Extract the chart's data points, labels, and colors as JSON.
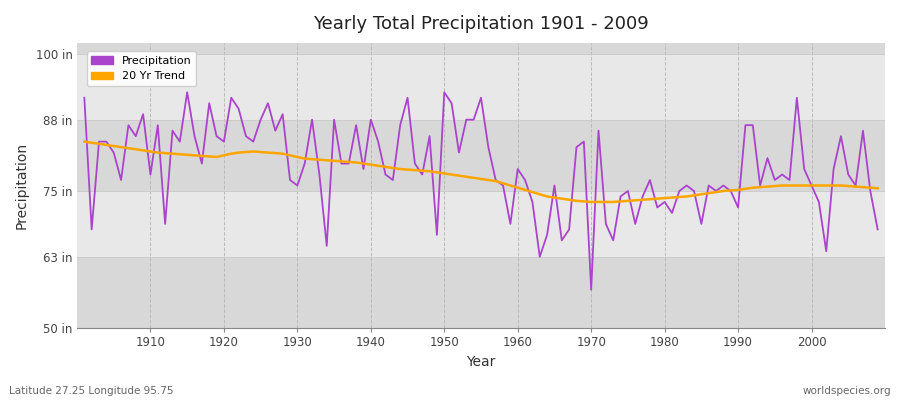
{
  "title": "Yearly Total Precipitation 1901 - 2009",
  "xlabel": "Year",
  "ylabel": "Precipitation",
  "subtitle_left": "Latitude 27.25 Longitude 95.75",
  "subtitle_right": "worldspecies.org",
  "ylim": [
    50,
    102
  ],
  "yticks": [
    50,
    63,
    75,
    88,
    100
  ],
  "ytick_labels": [
    "50 in",
    "63 in",
    "75 in",
    "88 in",
    "100 in"
  ],
  "xlim": [
    1900,
    2010
  ],
  "xticks": [
    1910,
    1920,
    1930,
    1940,
    1950,
    1960,
    1970,
    1980,
    1990,
    2000
  ],
  "precip_color": "#AA44CC",
  "trend_color": "#FFA500",
  "plot_bg": "#E8E8E8",
  "band_bg_dark": "#D8D8D8",
  "grid_color_v": "#BBBBBB",
  "grid_color_h": "#CCCCCC",
  "years": [
    1901,
    1902,
    1903,
    1904,
    1905,
    1906,
    1907,
    1908,
    1909,
    1910,
    1911,
    1912,
    1913,
    1914,
    1915,
    1916,
    1917,
    1918,
    1919,
    1920,
    1921,
    1922,
    1923,
    1924,
    1925,
    1926,
    1927,
    1928,
    1929,
    1930,
    1931,
    1932,
    1933,
    1934,
    1935,
    1936,
    1937,
    1938,
    1939,
    1940,
    1941,
    1942,
    1943,
    1944,
    1945,
    1946,
    1947,
    1948,
    1949,
    1950,
    1951,
    1952,
    1953,
    1954,
    1955,
    1956,
    1957,
    1958,
    1959,
    1960,
    1961,
    1962,
    1963,
    1964,
    1965,
    1966,
    1967,
    1968,
    1969,
    1970,
    1971,
    1972,
    1973,
    1974,
    1975,
    1976,
    1977,
    1978,
    1979,
    1980,
    1981,
    1982,
    1983,
    1984,
    1985,
    1986,
    1987,
    1988,
    1989,
    1990,
    1991,
    1992,
    1993,
    1994,
    1995,
    1996,
    1997,
    1998,
    1999,
    2000,
    2001,
    2002,
    2003,
    2004,
    2005,
    2006,
    2007,
    2008,
    2009
  ],
  "precip": [
    92,
    68,
    84,
    84,
    82,
    77,
    87,
    85,
    89,
    78,
    87,
    69,
    86,
    84,
    93,
    85,
    80,
    91,
    85,
    84,
    92,
    90,
    85,
    84,
    88,
    91,
    86,
    89,
    77,
    76,
    80,
    88,
    78,
    65,
    88,
    80,
    80,
    87,
    79,
    88,
    84,
    78,
    77,
    87,
    92,
    80,
    78,
    85,
    67,
    93,
    91,
    82,
    88,
    88,
    92,
    83,
    77,
    76,
    69,
    79,
    77,
    73,
    63,
    67,
    76,
    66,
    68,
    83,
    84,
    57,
    86,
    69,
    66,
    74,
    75,
    69,
    74,
    77,
    72,
    73,
    71,
    75,
    76,
    75,
    69,
    76,
    75,
    76,
    75,
    72,
    87,
    87,
    76,
    81,
    77,
    78,
    77,
    92,
    79,
    76,
    73,
    64,
    79,
    85,
    78,
    76,
    86,
    75,
    68
  ],
  "trend": [
    84.0,
    83.8,
    83.6,
    83.4,
    83.2,
    83.0,
    82.8,
    82.6,
    82.4,
    82.2,
    82.0,
    81.9,
    81.8,
    81.7,
    81.6,
    81.5,
    81.4,
    81.3,
    81.2,
    81.5,
    81.8,
    82.0,
    82.1,
    82.2,
    82.1,
    82.0,
    81.9,
    81.8,
    81.5,
    81.2,
    80.9,
    80.8,
    80.7,
    80.6,
    80.5,
    80.4,
    80.3,
    80.2,
    80.0,
    79.8,
    79.6,
    79.4,
    79.2,
    79.0,
    78.9,
    78.8,
    78.7,
    78.6,
    78.4,
    78.2,
    78.0,
    77.8,
    77.6,
    77.4,
    77.2,
    77.0,
    76.8,
    76.4,
    76.0,
    75.6,
    75.2,
    74.8,
    74.4,
    74.0,
    73.8,
    73.6,
    73.4,
    73.2,
    73.1,
    73.0,
    73.0,
    73.0,
    73.0,
    73.1,
    73.2,
    73.3,
    73.4,
    73.5,
    73.6,
    73.7,
    73.8,
    73.9,
    74.0,
    74.2,
    74.4,
    74.6,
    74.8,
    75.0,
    75.1,
    75.2,
    75.4,
    75.6,
    75.7,
    75.8,
    75.9,
    76.0,
    76.0,
    76.0,
    76.0,
    76.0,
    76.0,
    76.0,
    76.0,
    76.0,
    75.9,
    75.8,
    75.7,
    75.6,
    75.5
  ]
}
